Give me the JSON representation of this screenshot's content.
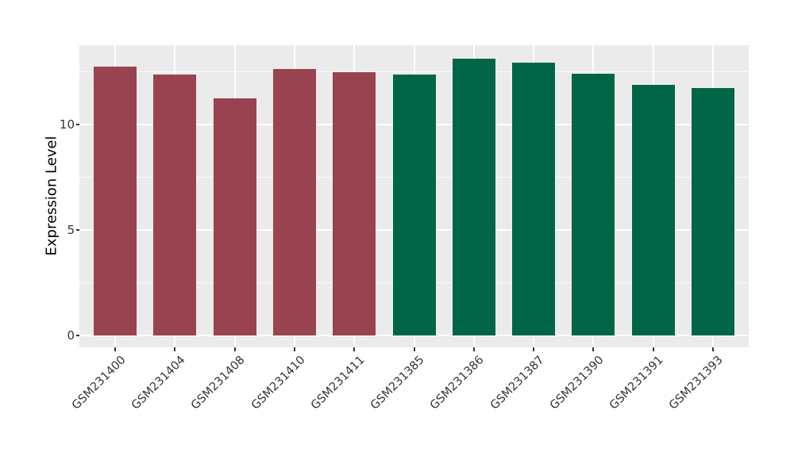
{
  "figure": {
    "background": "#ffffff",
    "panel_background": "#ebebeb",
    "grid_color": "#ffffff",
    "tick_label_color": "#333333",
    "axis_title_color": "#000000"
  },
  "chart_data": {
    "type": "bar",
    "title": "",
    "xlabel": "",
    "ylabel": "Expression Level",
    "categories": [
      "GSM231400",
      "GSM231404",
      "GSM231408",
      "GSM231410",
      "GSM231411",
      "GSM231385",
      "GSM231386",
      "GSM231387",
      "GSM231390",
      "GSM231391",
      "GSM231393"
    ],
    "values": [
      12.73,
      12.36,
      11.25,
      12.62,
      12.48,
      12.38,
      13.13,
      12.92,
      12.39,
      11.87,
      11.73
    ],
    "bar_colors": [
      "#9a4350",
      "#9a4350",
      "#9a4350",
      "#9a4350",
      "#9a4350",
      "#006647",
      "#006647",
      "#006647",
      "#006647",
      "#006647",
      "#006647"
    ],
    "color_groups": [
      {
        "color": "#9a4350",
        "count": 5
      },
      {
        "color": "#006647",
        "count": 6
      }
    ],
    "yticks": [
      0,
      5,
      10
    ],
    "ytick_labels": [
      "0",
      "5",
      "10"
    ],
    "yticks_minor": [
      2.5,
      7.5,
      12.5
    ],
    "ylim": [
      -0.56,
      13.75
    ],
    "bar_width_fraction": 0.72,
    "grid": true,
    "legend": "none",
    "x_tick_rotation": 45
  }
}
